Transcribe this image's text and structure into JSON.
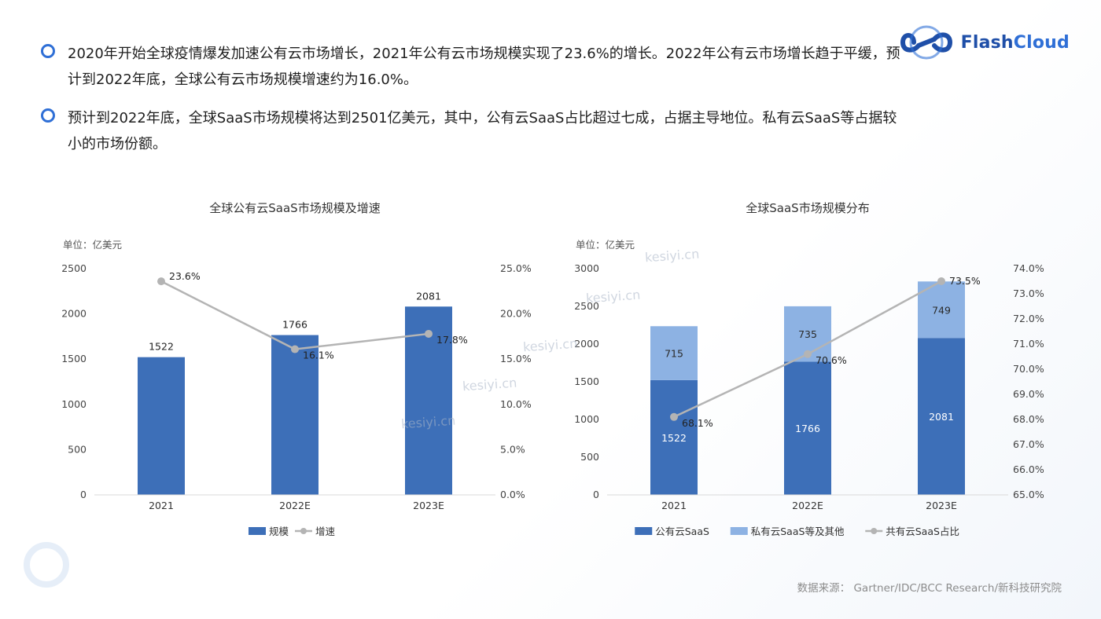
{
  "bullets": [
    "2020年开始全球疫情爆发加速公有云市场增长，2021年公有云市场规模实现了23.6%的增长。2022年公有云市场增长趋于平缓，预计到2022年底，全球公有云市场规模增速约为16.0%。",
    "预计到2022年底，全球SaaS市场规模将达到2501亿美元，其中，公有云SaaS占比超过七成，占据主导地位。私有云SaaS等占据较小的市场份额。"
  ],
  "logo": {
    "part1": "Flash",
    "part2": "Cloud"
  },
  "watermarks": [
    "kesiyi.cn",
    "kesiyi.cn",
    "kesiyi.cn",
    "kesiyi.cn",
    "kesiyi.cn"
  ],
  "source": "数据来源： Gartner/IDC/BCC Research/新科技研究院",
  "colors": {
    "dark_blue": "#3d6fb8",
    "light_blue": "#8db2e3",
    "line_gray": "#b4b4b4",
    "accent": "#2f6fd6"
  },
  "chart_data": [
    {
      "type": "bar",
      "title": "全球公有云SaaS市场规模及增速",
      "unit_label": "单位：亿美元",
      "categories": [
        "2021",
        "2022E",
        "2023E"
      ],
      "series": [
        {
          "name": "规模",
          "kind": "bar",
          "axis": "left",
          "values": [
            1522,
            1766,
            2081
          ],
          "labels": [
            "1522",
            "1766",
            "2081"
          ]
        },
        {
          "name": "增速",
          "kind": "line",
          "axis": "right",
          "values": [
            23.6,
            16.1,
            17.8
          ],
          "labels": [
            "23.6%",
            "16.1%",
            "17.8%"
          ]
        }
      ],
      "left_axis": {
        "min": 0,
        "max": 2500,
        "ticks": [
          "0",
          "500",
          "1000",
          "1500",
          "2000",
          "2500"
        ]
      },
      "right_axis": {
        "min": 0,
        "max": 25,
        "ticks": [
          "0.0%",
          "5.0%",
          "10.0%",
          "15.0%",
          "20.0%",
          "25.0%"
        ]
      },
      "legend": [
        "规模",
        "增速"
      ],
      "legend_position": "bottom",
      "grid": false
    },
    {
      "type": "bar",
      "stacked": true,
      "title": "全球SaaS市场规模分布",
      "unit_label": "单位：亿美元",
      "categories": [
        "2021",
        "2022E",
        "2023E"
      ],
      "series": [
        {
          "name": "公有云SaaS",
          "kind": "bar",
          "axis": "left",
          "values": [
            1522,
            1766,
            2081
          ],
          "labels": [
            "1522",
            "1766",
            "2081"
          ]
        },
        {
          "name": "私有云SaaS等及其他",
          "kind": "bar",
          "axis": "left",
          "values": [
            715,
            735,
            749
          ],
          "labels": [
            "715",
            "735",
            "749"
          ]
        },
        {
          "name": "共有云SaaS占比",
          "kind": "line",
          "axis": "right",
          "values": [
            68.1,
            70.6,
            73.5
          ],
          "labels": [
            "68.1%",
            "70.6%",
            "73.5%"
          ]
        }
      ],
      "left_axis": {
        "min": 0,
        "max": 3000,
        "ticks": [
          "0",
          "500",
          "1000",
          "1500",
          "2000",
          "2500",
          "3000"
        ]
      },
      "right_axis": {
        "min": 65,
        "max": 74,
        "ticks": [
          "65.0%",
          "66.0%",
          "67.0%",
          "68.0%",
          "69.0%",
          "70.0%",
          "71.0%",
          "72.0%",
          "73.0%",
          "74.0%"
        ]
      },
      "legend": [
        "公有云SaaS",
        "私有云SaaS等及其他",
        "共有云SaaS占比"
      ],
      "legend_position": "bottom",
      "grid": false
    }
  ]
}
